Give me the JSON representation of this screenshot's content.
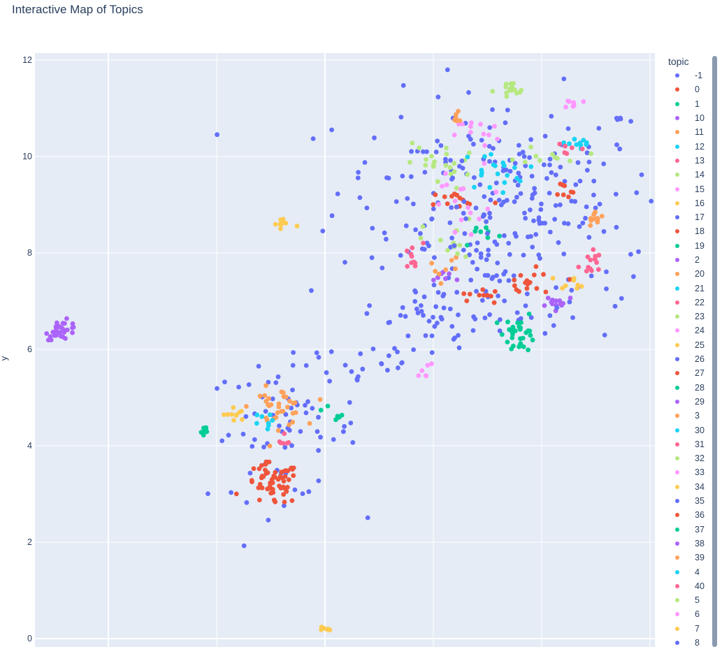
{
  "title": "Interactive Map of Topics",
  "legend": {
    "title": "topic",
    "items": [
      {
        "label": "-1",
        "color": "#636efa"
      },
      {
        "label": "0",
        "color": "#EF553B"
      },
      {
        "label": "1",
        "color": "#00cc96"
      },
      {
        "label": "10",
        "color": "#ab63fa"
      },
      {
        "label": "11",
        "color": "#FFA15A"
      },
      {
        "label": "12",
        "color": "#19d3f3"
      },
      {
        "label": "13",
        "color": "#FF6692"
      },
      {
        "label": "14",
        "color": "#B6E880"
      },
      {
        "label": "15",
        "color": "#FF97FF"
      },
      {
        "label": "16",
        "color": "#FECB52"
      },
      {
        "label": "17",
        "color": "#636efa"
      },
      {
        "label": "18",
        "color": "#EF553B"
      },
      {
        "label": "19",
        "color": "#00cc96"
      },
      {
        "label": "2",
        "color": "#ab63fa"
      },
      {
        "label": "20",
        "color": "#FFA15A"
      },
      {
        "label": "21",
        "color": "#19d3f3"
      },
      {
        "label": "22",
        "color": "#FF6692"
      },
      {
        "label": "23",
        "color": "#B6E880"
      },
      {
        "label": "24",
        "color": "#FF97FF"
      },
      {
        "label": "25",
        "color": "#FECB52"
      },
      {
        "label": "26",
        "color": "#636efa"
      },
      {
        "label": "27",
        "color": "#EF553B"
      },
      {
        "label": "28",
        "color": "#00cc96"
      },
      {
        "label": "29",
        "color": "#ab63fa"
      },
      {
        "label": "3",
        "color": "#FFA15A"
      },
      {
        "label": "30",
        "color": "#19d3f3"
      },
      {
        "label": "31",
        "color": "#FF6692"
      },
      {
        "label": "32",
        "color": "#B6E880"
      },
      {
        "label": "33",
        "color": "#FF97FF"
      },
      {
        "label": "34",
        "color": "#FECB52"
      },
      {
        "label": "35",
        "color": "#636efa"
      },
      {
        "label": "36",
        "color": "#EF553B"
      },
      {
        "label": "37",
        "color": "#00cc96"
      },
      {
        "label": "38",
        "color": "#ab63fa"
      },
      {
        "label": "39",
        "color": "#FFA15A"
      },
      {
        "label": "4",
        "color": "#19d3f3"
      },
      {
        "label": "40",
        "color": "#FF6692"
      },
      {
        "label": "5",
        "color": "#B6E880"
      },
      {
        "label": "6",
        "color": "#FF97FF"
      },
      {
        "label": "7",
        "color": "#FECB52"
      },
      {
        "label": "8",
        "color": "#636efa"
      }
    ]
  },
  "chart_data": {
    "type": "scatter",
    "title": "Interactive Map of Topics",
    "xlabel": "",
    "ylabel": "y",
    "ylim": [
      0,
      12
    ],
    "xlim": [
      -7.0,
      4.5
    ],
    "yticks": [
      0,
      2,
      4,
      6,
      8,
      10,
      12
    ],
    "grid": true,
    "legend_placement": "right",
    "plot_bg": "#e5ecf6",
    "clusters": [
      {
        "topic": "-1",
        "cx": 1.6,
        "cy": 9.3,
        "sx": 1.5,
        "sy": 1.0,
        "n": 200
      },
      {
        "topic": "-1",
        "cx": 1.6,
        "cy": 7.1,
        "sx": 1.2,
        "sy": 0.5,
        "n": 60
      },
      {
        "topic": "-1",
        "cx": -2.4,
        "cy": 4.3,
        "sx": 0.7,
        "sy": 0.7,
        "n": 70
      },
      {
        "topic": "-1",
        "cx": -0.8,
        "cy": 5.7,
        "sx": 0.5,
        "sy": 0.3,
        "n": 20
      },
      {
        "topic": "-1",
        "cx": 0.4,
        "cy": 6.6,
        "sx": 0.4,
        "sy": 0.6,
        "n": 25
      },
      {
        "topic": "0",
        "cx": -2.6,
        "cy": 3.2,
        "sx": 0.25,
        "sy": 0.22,
        "n": 60
      },
      {
        "topic": "0",
        "cx": 2.2,
        "cy": 7.35,
        "sx": 0.3,
        "sy": 0.15,
        "n": 18
      },
      {
        "topic": "1",
        "cx": 2.0,
        "cy": 6.35,
        "sx": 0.15,
        "sy": 0.2,
        "n": 30
      },
      {
        "topic": "10",
        "cx": -6.5,
        "cy": 6.4,
        "sx": 0.15,
        "sy": 0.1,
        "n": 30
      },
      {
        "topic": "11",
        "cx": -2.5,
        "cy": 4.8,
        "sx": 0.25,
        "sy": 0.2,
        "n": 35
      },
      {
        "topic": "12",
        "cx": 1.5,
        "cy": 9.7,
        "sx": 0.3,
        "sy": 0.2,
        "n": 20
      },
      {
        "topic": "13",
        "cx": 0.0,
        "cy": 7.9,
        "sx": 0.1,
        "sy": 0.15,
        "n": 10
      },
      {
        "topic": "14",
        "cx": 1.8,
        "cy": 11.35,
        "sx": 0.15,
        "sy": 0.1,
        "n": 16
      },
      {
        "topic": "15",
        "cx": 1.2,
        "cy": 10.5,
        "sx": 0.2,
        "sy": 0.15,
        "n": 12
      },
      {
        "topic": "16",
        "cx": -2.4,
        "cy": 8.6,
        "sx": 0.15,
        "sy": 0.1,
        "n": 12
      },
      {
        "topic": "17",
        "cx": 2.3,
        "cy": 8.7,
        "sx": 0.2,
        "sy": 0.15,
        "n": 10
      },
      {
        "topic": "18",
        "cx": 0.9,
        "cy": 9.1,
        "sx": 0.3,
        "sy": 0.1,
        "n": 14
      },
      {
        "topic": "19",
        "cx": 1.3,
        "cy": 8.4,
        "sx": 0.2,
        "sy": 0.15,
        "n": 8
      },
      {
        "topic": "2",
        "cx": 2.7,
        "cy": 7.0,
        "sx": 0.2,
        "sy": 0.07,
        "n": 14
      },
      {
        "topic": "20",
        "cx": 3.4,
        "cy": 8.7,
        "sx": 0.08,
        "sy": 0.08,
        "n": 12
      },
      {
        "topic": "21",
        "cx": 3.1,
        "cy": 10.25,
        "sx": 0.1,
        "sy": 0.15,
        "n": 10
      },
      {
        "topic": "22",
        "cx": 3.3,
        "cy": 7.8,
        "sx": 0.1,
        "sy": 0.15,
        "n": 14
      },
      {
        "topic": "23",
        "cx": 2.6,
        "cy": 10.05,
        "sx": 0.3,
        "sy": 0.1,
        "n": 10
      },
      {
        "topic": "24",
        "cx": 3.0,
        "cy": 11.1,
        "sx": 0.08,
        "sy": 0.05,
        "n": 8
      },
      {
        "topic": "25",
        "cx": 3.0,
        "cy": 7.4,
        "sx": 0.15,
        "sy": 0.07,
        "n": 8
      },
      {
        "topic": "27",
        "cx": 2.8,
        "cy": 9.3,
        "sx": 0.1,
        "sy": 0.1,
        "n": 8
      },
      {
        "topic": "28",
        "cx": -3.9,
        "cy": 4.3,
        "sx": 0.07,
        "sy": 0.07,
        "n": 8
      },
      {
        "topic": "29",
        "cx": 0.6,
        "cy": 7.5,
        "sx": 0.2,
        "sy": 0.1,
        "n": 8
      },
      {
        "topic": "3",
        "cx": 0.8,
        "cy": 10.8,
        "sx": 0.08,
        "sy": 0.06,
        "n": 8
      },
      {
        "topic": "30",
        "cx": -2.8,
        "cy": 4.5,
        "sx": 0.1,
        "sy": 0.08,
        "n": 8
      },
      {
        "topic": "31",
        "cx": 2.8,
        "cy": 10.1,
        "sx": 0.15,
        "sy": 0.15,
        "n": 6
      },
      {
        "topic": "32",
        "cx": 0.5,
        "cy": 9.8,
        "sx": 0.3,
        "sy": 0.25,
        "n": 22
      },
      {
        "topic": "33",
        "cx": 0.2,
        "cy": 5.6,
        "sx": 0.07,
        "sy": 0.1,
        "n": 6
      },
      {
        "topic": "34",
        "cx": -3.3,
        "cy": 4.65,
        "sx": 0.1,
        "sy": 0.08,
        "n": 10
      },
      {
        "topic": "36",
        "cx": 1.2,
        "cy": 7.1,
        "sx": 0.15,
        "sy": 0.1,
        "n": 8
      },
      {
        "topic": "37",
        "cx": -1.5,
        "cy": 4.7,
        "sx": 0.1,
        "sy": 0.1,
        "n": 6
      },
      {
        "topic": "39",
        "cx": 0.6,
        "cy": 7.7,
        "sx": 0.15,
        "sy": 0.15,
        "n": 8
      },
      {
        "topic": "40",
        "cx": -2.4,
        "cy": 4.1,
        "sx": 0.1,
        "sy": 0.15,
        "n": 6
      },
      {
        "topic": "5",
        "cx": 0.7,
        "cy": 8.2,
        "sx": 0.25,
        "sy": 0.25,
        "n": 14
      },
      {
        "topic": "6",
        "cx": 1.0,
        "cy": 9.0,
        "sx": 0.4,
        "sy": 0.4,
        "n": 16
      },
      {
        "topic": "7",
        "cx": -1.6,
        "cy": 0.18,
        "sx": 0.04,
        "sy": 0.04,
        "n": 6
      },
      {
        "topic": "8",
        "cx": 1.6,
        "cy": 8.0,
        "sx": 1.0,
        "sy": 1.0,
        "n": 30
      }
    ]
  }
}
